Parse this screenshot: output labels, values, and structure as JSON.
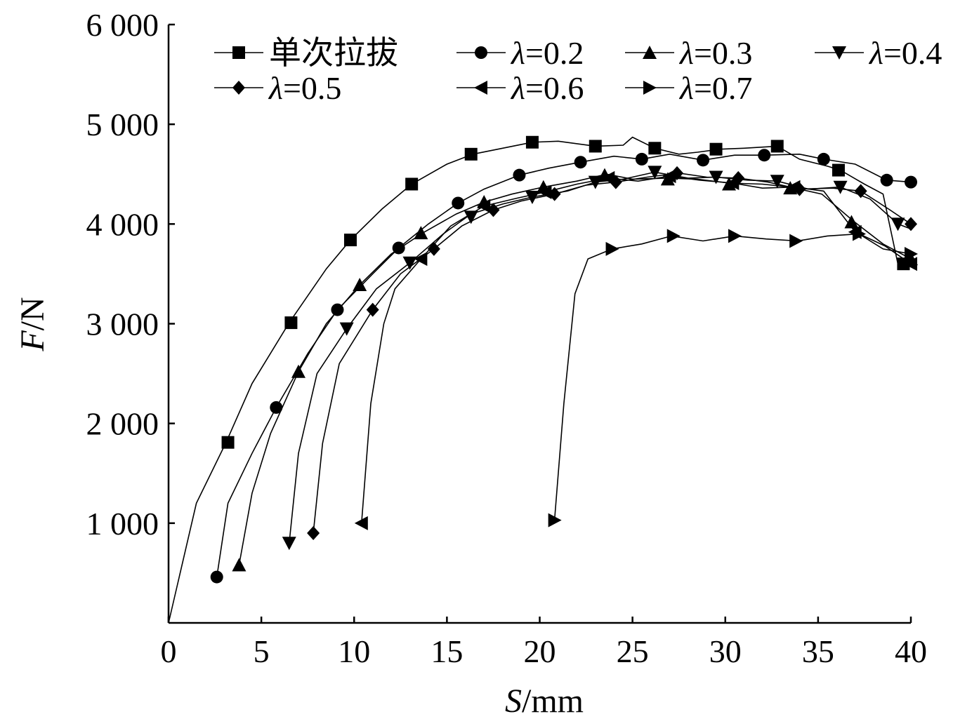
{
  "chart_data": {
    "type": "line",
    "xlabel": "S/mm",
    "xlabel_italic": "S",
    "xlabel_unit": "/mm",
    "ylabel": "F/N",
    "ylabel_italic": "F",
    "ylabel_unit": "/N",
    "xlim": [
      0,
      40
    ],
    "ylim": [
      0,
      6000
    ],
    "xticks": [
      0,
      5,
      10,
      15,
      20,
      25,
      30,
      35,
      40
    ],
    "xtick_labels": [
      "0",
      "5",
      "10",
      "15",
      "20",
      "25",
      "30",
      "35",
      "40"
    ],
    "yticks": [
      1000,
      2000,
      3000,
      4000,
      5000,
      6000
    ],
    "ytick_labels": [
      "1 000",
      "2 000",
      "3 000",
      "4 000",
      "5 000",
      "6 000"
    ],
    "grid": false,
    "legend_position": "top",
    "series": [
      {
        "name": "单次拉拔",
        "label_prefix": "",
        "label_value": "单次拉拔",
        "marker": "square",
        "x": [
          0,
          1.5,
          3.1,
          4.5,
          6.5,
          8.5,
          9.8,
          11.5,
          13.1,
          15,
          16.4,
          18,
          19.6,
          21,
          23,
          24.5,
          25,
          26.2,
          27.5,
          28.5,
          29.7,
          31,
          32.8,
          34,
          35.5,
          36.2,
          37.5,
          38.5,
          39.3,
          40
        ],
        "y": [
          0,
          1200,
          1810,
          2400,
          3010,
          3550,
          3840,
          4150,
          4400,
          4600,
          4700,
          4760,
          4820,
          4830,
          4780,
          4790,
          4870,
          4760,
          4700,
          4720,
          4750,
          4760,
          4780,
          4650,
          4580,
          4540,
          4400,
          4300,
          3600,
          3600
        ],
        "markers": [
          [
            3.2,
            1810
          ],
          [
            6.6,
            3010
          ],
          [
            9.8,
            3840
          ],
          [
            13.1,
            4400
          ],
          [
            16.3,
            4700
          ],
          [
            19.6,
            4820
          ],
          [
            23.0,
            4780
          ],
          [
            26.2,
            4760
          ],
          [
            29.5,
            4750
          ],
          [
            32.8,
            4780
          ],
          [
            36.1,
            4540
          ],
          [
            39.6,
            3600
          ]
        ]
      },
      {
        "name": "λ=0.2",
        "label_prefix": "λ",
        "label_value": "=0.2",
        "marker": "circle",
        "x": [
          2.6,
          3.2,
          4.5,
          5.8,
          7.5,
          9.1,
          11,
          12.4,
          14,
          15.6,
          17,
          18.9,
          20.5,
          22.2,
          24,
          25.5,
          27,
          28.8,
          30.5,
          32.1,
          34,
          35.3,
          37,
          38.7,
          40
        ],
        "y": [
          460,
          1200,
          1700,
          2160,
          2700,
          3140,
          3500,
          3760,
          4000,
          4210,
          4350,
          4490,
          4560,
          4620,
          4680,
          4650,
          4700,
          4640,
          4690,
          4690,
          4700,
          4650,
          4600,
          4440,
          4420
        ],
        "markers": [
          [
            2.6,
            460
          ],
          [
            5.8,
            2160
          ],
          [
            9.1,
            3140
          ],
          [
            12.4,
            3760
          ],
          [
            15.6,
            4210
          ],
          [
            18.9,
            4490
          ],
          [
            22.2,
            4620
          ],
          [
            25.5,
            4650
          ],
          [
            28.8,
            4640
          ],
          [
            32.1,
            4690
          ],
          [
            35.3,
            4650
          ],
          [
            38.7,
            4440
          ],
          [
            40,
            4420
          ]
        ]
      },
      {
        "name": "λ=0.3",
        "label_prefix": "λ",
        "label_value": "=0.3",
        "marker": "triangle-up",
        "x": [
          3.8,
          4.5,
          5.5,
          7.0,
          8.5,
          10.3,
          12,
          13.7,
          15.5,
          17.0,
          18.5,
          20.2,
          22,
          23.6,
          25,
          26.9,
          28.5,
          30.2,
          32,
          33.5,
          35.2,
          36.9,
          38.5,
          40
        ],
        "y": [
          580,
          1300,
          1900,
          2520,
          3000,
          3390,
          3700,
          3910,
          4100,
          4220,
          4300,
          4370,
          4430,
          4500,
          4450,
          4460,
          4450,
          4410,
          4400,
          4370,
          4300,
          4030,
          3800,
          3650
        ],
        "markers": [
          [
            3.8,
            580
          ],
          [
            7.0,
            2520
          ],
          [
            10.3,
            3390
          ],
          [
            13.6,
            3910
          ],
          [
            17.0,
            4220
          ],
          [
            20.2,
            4370
          ],
          [
            23.5,
            4490
          ],
          [
            26.9,
            4450
          ],
          [
            30.2,
            4400
          ],
          [
            33.5,
            4360
          ],
          [
            36.8,
            4020
          ],
          [
            40,
            3650
          ]
        ]
      },
      {
        "name": "λ=0.4",
        "label_prefix": "λ",
        "label_value": "=0.4",
        "marker": "triangle-down",
        "x": [
          6.5,
          7.0,
          8.0,
          9.6,
          11.2,
          13.0,
          14.8,
          16.3,
          18,
          19.6,
          21.5,
          23.0,
          24.5,
          26.2,
          28,
          29.5,
          31.2,
          32.8,
          34.5,
          36.2,
          37.8,
          39.3,
          40
        ],
        "y": [
          800,
          1700,
          2500,
          2950,
          3350,
          3610,
          3900,
          4100,
          4200,
          4270,
          4330,
          4420,
          4450,
          4520,
          4460,
          4470,
          4440,
          4430,
          4350,
          4370,
          4250,
          4000,
          3950
        ],
        "markers": [
          [
            6.5,
            800
          ],
          [
            9.6,
            2950
          ],
          [
            13.0,
            3610
          ],
          [
            16.3,
            4070
          ],
          [
            19.6,
            4270
          ],
          [
            23.0,
            4420
          ],
          [
            26.2,
            4520
          ],
          [
            29.5,
            4470
          ],
          [
            32.8,
            4430
          ],
          [
            36.2,
            4370
          ],
          [
            39.3,
            4000
          ]
        ]
      },
      {
        "name": "λ=0.5",
        "label_prefix": "λ",
        "label_value": "=0.5",
        "marker": "diamond",
        "x": [
          7.8,
          8.3,
          9.2,
          11.0,
          12.5,
          14.3,
          15.8,
          17.5,
          19,
          20.8,
          22.5,
          24.1,
          25.8,
          27.5,
          29,
          30.7,
          32.3,
          34.0,
          35.8,
          37.3,
          38.8,
          40
        ],
        "y": [
          900,
          1800,
          2600,
          3140,
          3500,
          3750,
          3980,
          4140,
          4230,
          4300,
          4390,
          4420,
          4470,
          4510,
          4470,
          4460,
          4420,
          4350,
          4360,
          4330,
          4150,
          4000
        ],
        "markers": [
          [
            7.8,
            900
          ],
          [
            11.0,
            3140
          ],
          [
            14.3,
            3750
          ],
          [
            17.5,
            4140
          ],
          [
            20.8,
            4300
          ],
          [
            24.1,
            4420
          ],
          [
            27.4,
            4510
          ],
          [
            30.7,
            4460
          ],
          [
            34.0,
            4350
          ],
          [
            37.3,
            4330
          ],
          [
            40,
            4000
          ]
        ]
      },
      {
        "name": "λ=0.6",
        "label_prefix": "λ",
        "label_value": "=0.6",
        "marker": "triangle-left",
        "x": [
          10.4,
          10.9,
          11.6,
          12.2,
          13.6,
          15.2,
          17.0,
          18.8,
          20.3,
          22,
          23.7,
          25.3,
          27.0,
          28.6,
          30.4,
          32.0,
          33.7,
          35.3,
          37.0,
          38.6,
          40
        ],
        "y": [
          1000,
          2200,
          3000,
          3350,
          3650,
          3980,
          4180,
          4260,
          4320,
          4400,
          4460,
          4430,
          4480,
          4440,
          4410,
          4360,
          4370,
          4330,
          3920,
          3780,
          3600
        ],
        "markers": [
          [
            10.4,
            1000
          ],
          [
            13.6,
            3650
          ],
          [
            17.0,
            4180
          ],
          [
            20.3,
            4320
          ],
          [
            23.7,
            4460
          ],
          [
            27.0,
            4480
          ],
          [
            30.4,
            4410
          ],
          [
            33.7,
            4370
          ],
          [
            37.0,
            3920
          ],
          [
            40,
            3600
          ]
        ]
      },
      {
        "name": "λ=0.7",
        "label_prefix": "λ",
        "label_value": "=0.7",
        "marker": "triangle-right",
        "x": [
          20.8,
          21.3,
          21.9,
          22.6,
          23.9,
          25.5,
          27.1,
          28.8,
          30.5,
          32.2,
          33.9,
          35.5,
          37.2,
          38.5,
          40
        ],
        "y": [
          1030,
          2200,
          3300,
          3650,
          3750,
          3800,
          3880,
          3830,
          3880,
          3850,
          3830,
          3880,
          3900,
          3750,
          3700
        ],
        "markers": [
          [
            20.8,
            1030
          ],
          [
            23.9,
            3750
          ],
          [
            27.2,
            3880
          ],
          [
            30.5,
            3880
          ],
          [
            33.8,
            3830
          ],
          [
            37.2,
            3900
          ],
          [
            40,
            3700
          ]
        ]
      }
    ]
  }
}
